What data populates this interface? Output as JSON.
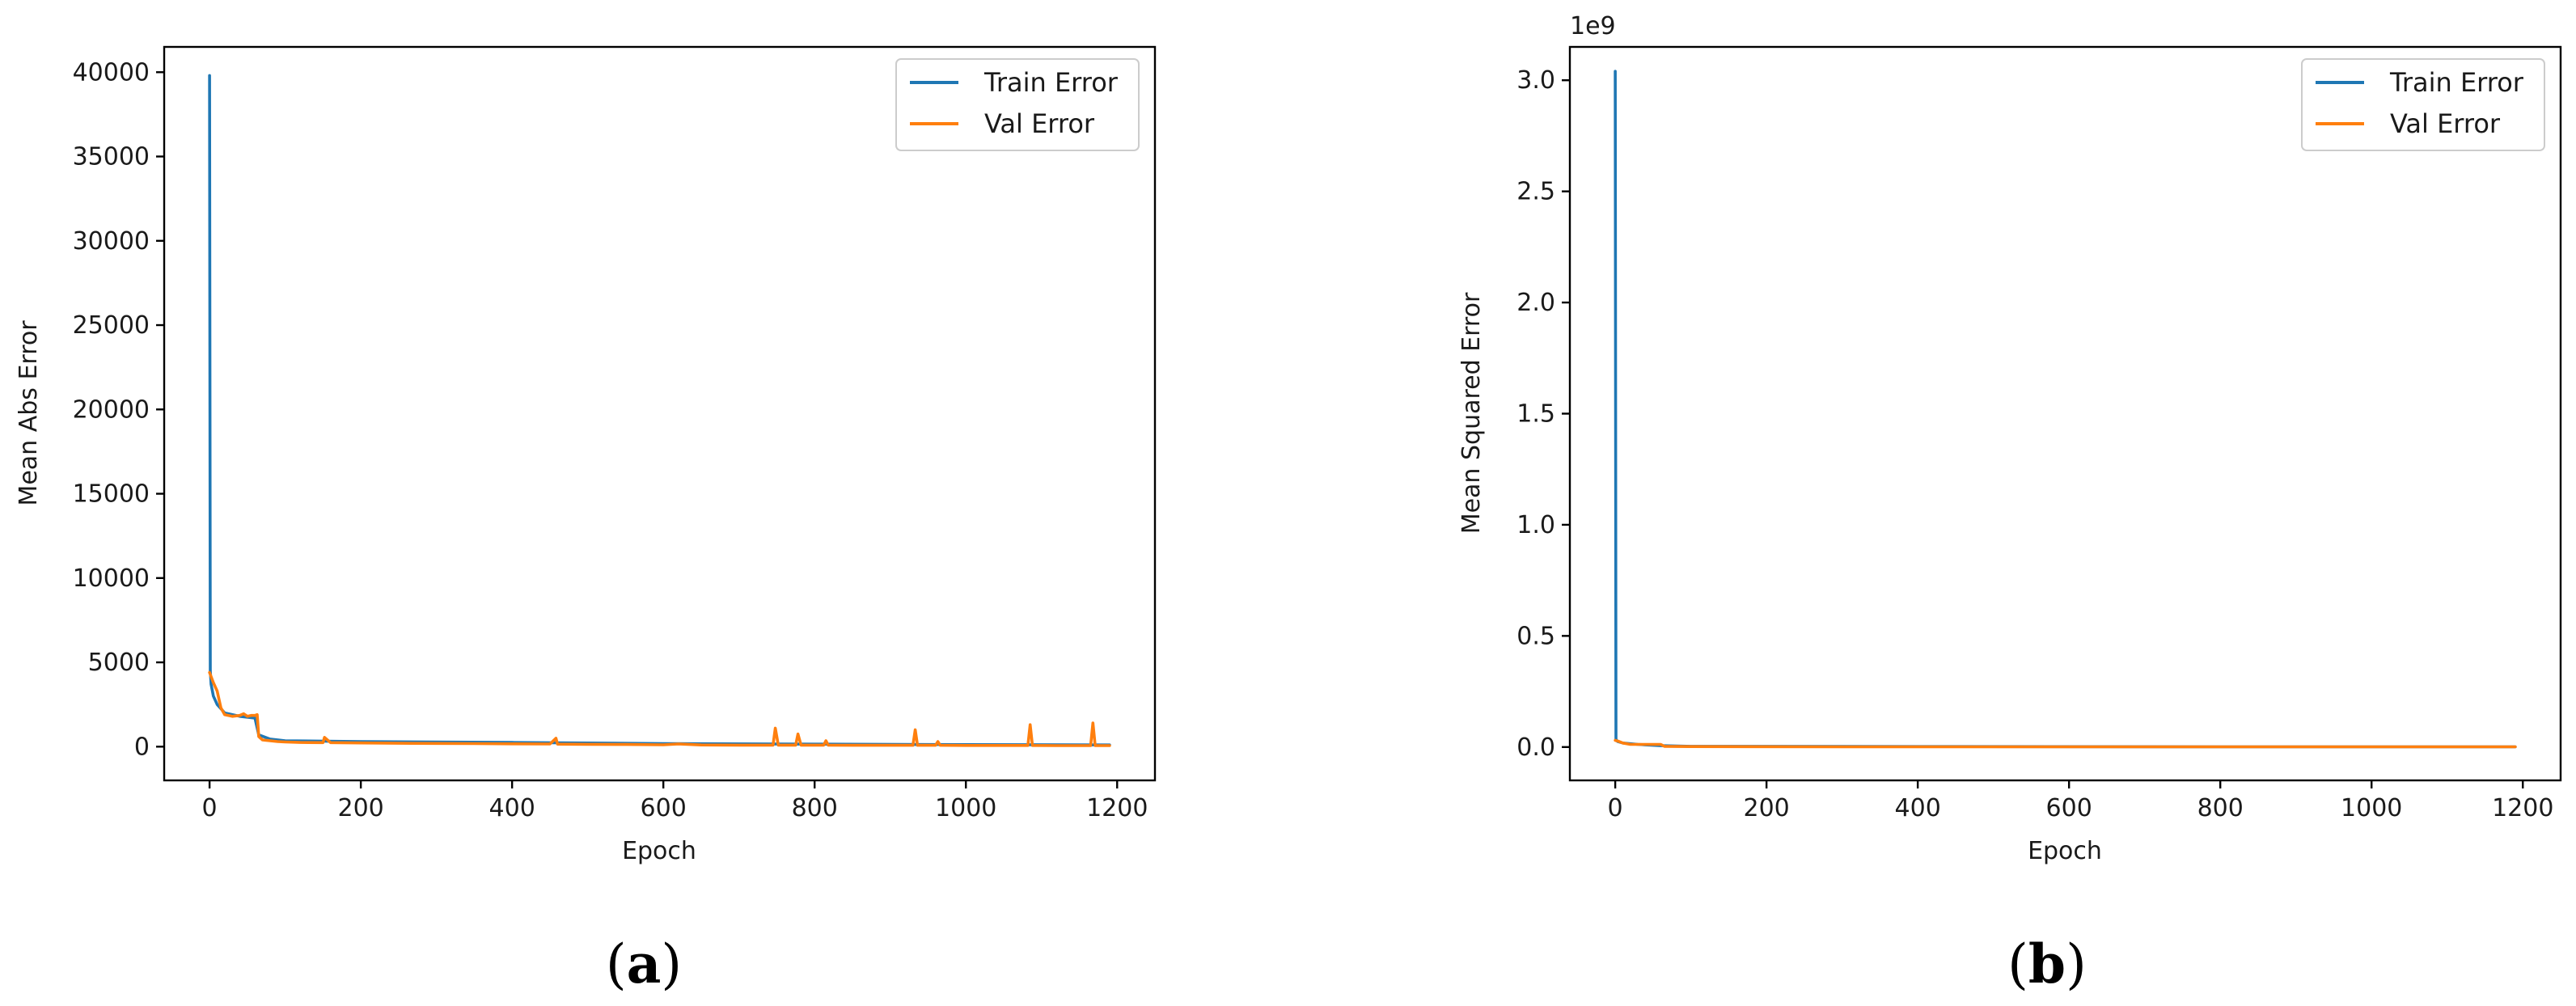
{
  "chart_data": [
    {
      "type": "line",
      "panel_label": "a",
      "xlabel": "Epoch",
      "ylabel": "Mean Abs Error",
      "xlim": [
        -60,
        1250
      ],
      "ylim": [
        -2000,
        41500
      ],
      "xticks": [
        0,
        200,
        400,
        600,
        800,
        1000,
        1200
      ],
      "xtick_labels": [
        "0",
        "200",
        "400",
        "600",
        "800",
        "1000",
        "1200"
      ],
      "yticks": [
        0,
        5000,
        10000,
        15000,
        20000,
        25000,
        30000,
        35000,
        40000
      ],
      "ytick_labels": [
        "0",
        "5000",
        "10000",
        "15000",
        "20000",
        "25000",
        "30000",
        "35000",
        "40000"
      ],
      "offset_text": "",
      "grid": false,
      "legend_position": "upper right",
      "legend": [
        "Train Error",
        "Val Error"
      ],
      "series": [
        {
          "name": "Train Error",
          "color": "#1f77b4",
          "x": [
            0,
            1,
            2,
            5,
            10,
            20,
            40,
            60,
            65,
            80,
            100,
            200,
            400,
            600,
            800,
            1000,
            1190
          ],
          "y": [
            39800,
            4500,
            3700,
            3000,
            2500,
            2000,
            1800,
            1700,
            700,
            450,
            350,
            300,
            250,
            180,
            150,
            120,
            100
          ]
        },
        {
          "name": "Val Error",
          "color": "#ff7f0e",
          "x": [
            0,
            5,
            10,
            15,
            20,
            30,
            40,
            45,
            50,
            55,
            60,
            63,
            65,
            70,
            80,
            90,
            100,
            120,
            150,
            152,
            160,
            200,
            250,
            300,
            350,
            400,
            450,
            458,
            460,
            500,
            550,
            600,
            620,
            650,
            700,
            745,
            748,
            752,
            775,
            778,
            782,
            800,
            812,
            815,
            818,
            850,
            900,
            930,
            933,
            936,
            960,
            963,
            966,
            1000,
            1050,
            1082,
            1085,
            1088,
            1120,
            1165,
            1168,
            1171,
            1180,
            1190
          ],
          "y": [
            4400,
            3800,
            3300,
            2300,
            1900,
            1800,
            1850,
            1950,
            1800,
            1850,
            1850,
            1900,
            600,
            400,
            350,
            300,
            280,
            250,
            240,
            550,
            240,
            220,
            200,
            190,
            180,
            170,
            160,
            500,
            150,
            140,
            130,
            110,
            160,
            100,
            90,
            90,
            1100,
            90,
            90,
            750,
            90,
            90,
            90,
            350,
            90,
            80,
            80,
            80,
            1000,
            80,
            80,
            300,
            80,
            70,
            70,
            70,
            1300,
            70,
            60,
            60,
            1400,
            60,
            60,
            60
          ]
        }
      ]
    },
    {
      "type": "line",
      "panel_label": "b",
      "xlabel": "Epoch",
      "ylabel": "Mean Squared Error",
      "xlim": [
        -60,
        1250
      ],
      "ylim": [
        -0.15,
        3.15
      ],
      "xticks": [
        0,
        200,
        400,
        600,
        800,
        1000,
        1200
      ],
      "xtick_labels": [
        "0",
        "200",
        "400",
        "600",
        "800",
        "1000",
        "1200"
      ],
      "yticks": [
        0,
        0.5,
        1.0,
        1.5,
        2.0,
        2.5,
        3.0
      ],
      "ytick_labels": [
        "0.0",
        "0.5",
        "1.0",
        "1.5",
        "2.0",
        "2.5",
        "3.0"
      ],
      "offset_text": "1e9",
      "grid": false,
      "legend_position": "upper right",
      "legend": [
        "Train Error",
        "Val Error"
      ],
      "series": [
        {
          "name": "Train Error",
          "color": "#1f77b4",
          "x": [
            0,
            1,
            3,
            10,
            30,
            60,
            100,
            400,
            800,
            1190
          ],
          "y": [
            3.04,
            0.035,
            0.025,
            0.018,
            0.012,
            0.006,
            0.003,
            0.002,
            0.001,
            0.001
          ]
        },
        {
          "name": "Val Error",
          "color": "#ff7f0e",
          "x": [
            0,
            5,
            10,
            20,
            40,
            60,
            65,
            100,
            300,
            600,
            900,
            1190
          ],
          "y": [
            0.03,
            0.025,
            0.018,
            0.012,
            0.012,
            0.012,
            0.003,
            0.002,
            0.001,
            0.001,
            0.001,
            0.001
          ]
        }
      ]
    }
  ]
}
